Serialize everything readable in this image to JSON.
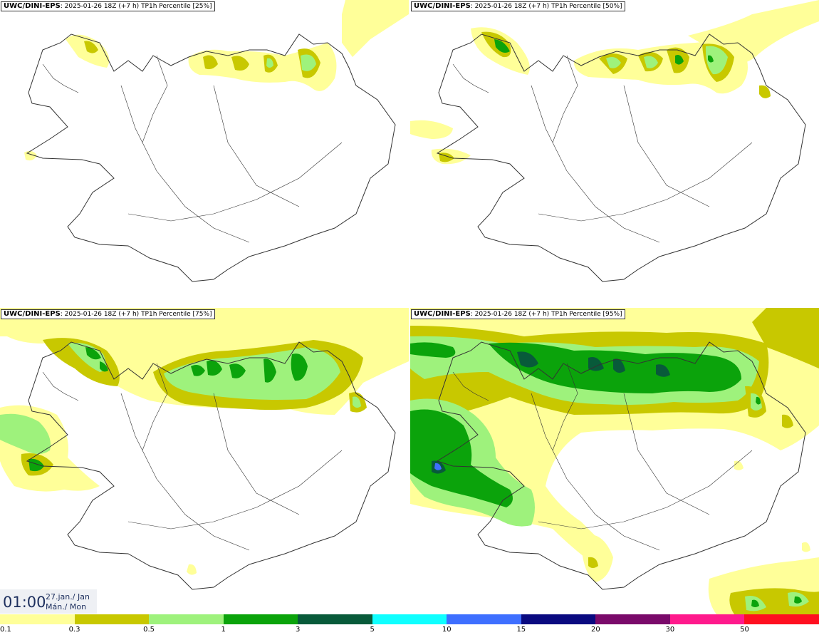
{
  "panels": [
    {
      "model": "UWC/DINI-EPS",
      "run": ": 2025-01-26 18Z",
      "lead": "(+7 h)",
      "field": "TP1h Percentile [25%]"
    },
    {
      "model": "UWC/DINI-EPS",
      "run": ": 2025-01-26 18Z",
      "lead": "(+7 h)",
      "field": "TP1h Percentile [50%]"
    },
    {
      "model": "UWC/DINI-EPS",
      "run": ": 2025-01-26 18Z",
      "lead": "(+7 h)",
      "field": "TP1h Percentile [75%]"
    },
    {
      "model": "UWC/DINI-EPS",
      "run": ": 2025-01-26 18Z",
      "lead": "(+7 h)",
      "field": "TP1h Percentile [95%]"
    }
  ],
  "valid_time": {
    "time": "01:00",
    "date_line1": "27.jan./ Jan",
    "date_line2": "Mán./ Mon"
  },
  "legend": {
    "colors": [
      "#ffff99",
      "#c8c800",
      "#9ef27c",
      "#0ba30b",
      "#085a3a",
      "#10ffff",
      "#3e6fff",
      "#0a0a80",
      "#7a0a6a",
      "#ff1a8c",
      "#ff0f20"
    ],
    "ticks": [
      "0.1",
      "0.3",
      "0.5",
      "1",
      "3",
      "5",
      "10",
      "15",
      "20",
      "30",
      "50"
    ]
  },
  "colors": {
    "yellow": "#ffff99",
    "olive": "#c8c800",
    "lightgreen": "#9ef27c",
    "green": "#0ba30b",
    "darkgreen": "#085a3a"
  }
}
